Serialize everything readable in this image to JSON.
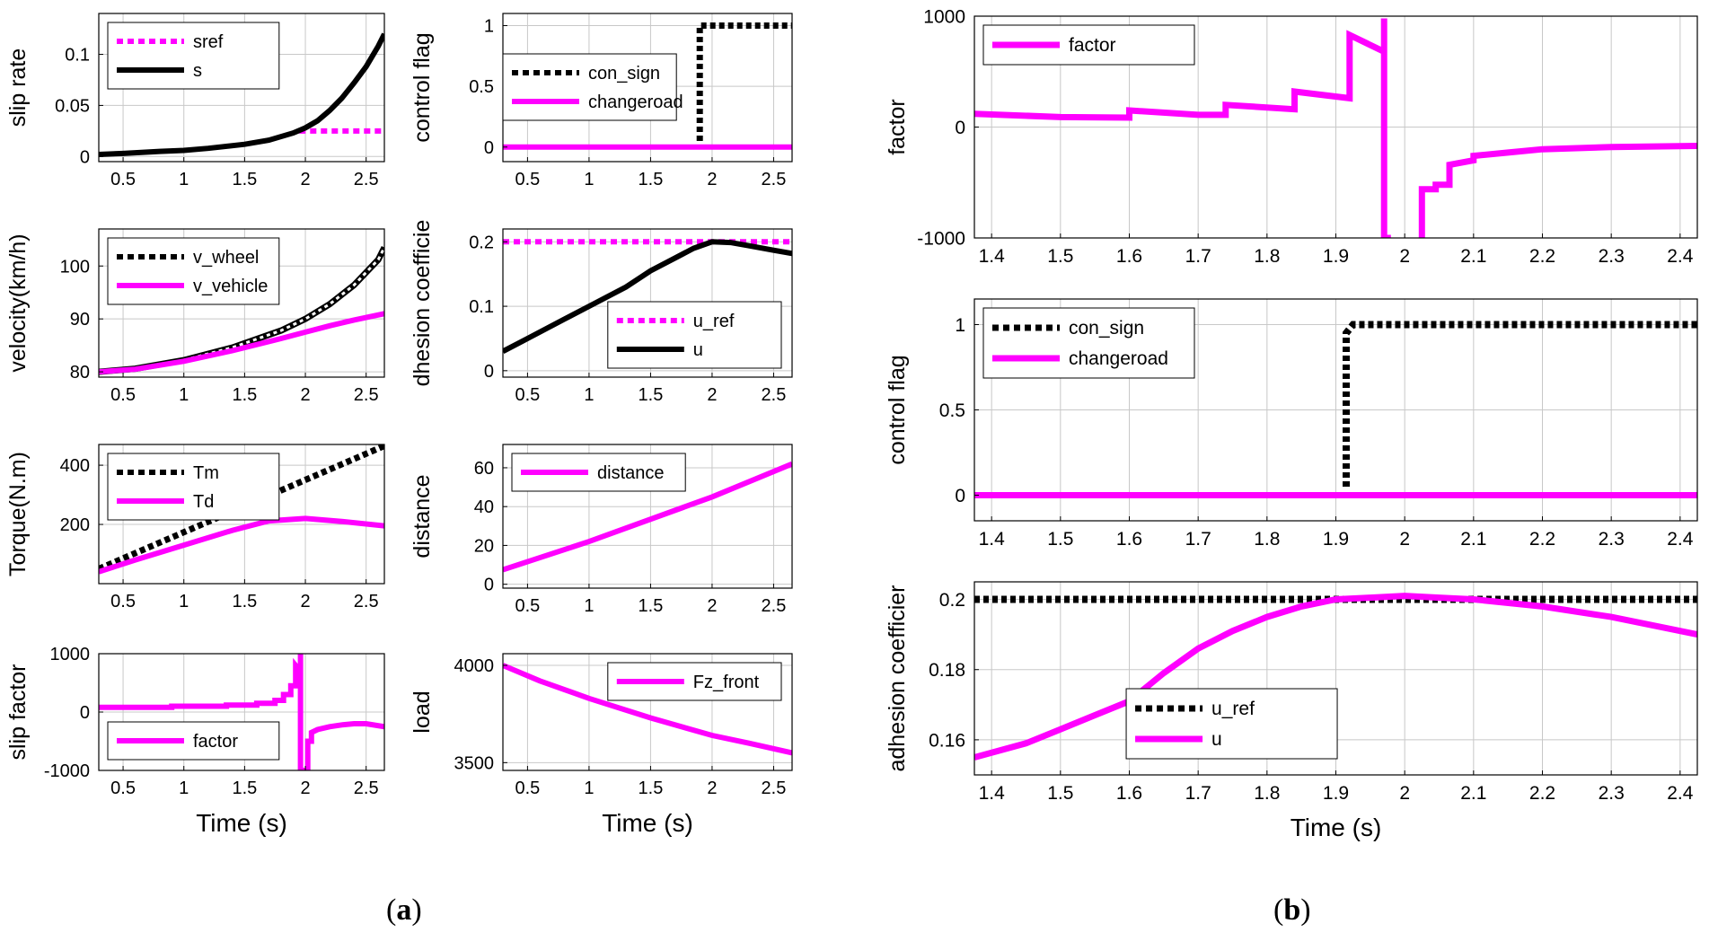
{
  "panels": {
    "a": {
      "open": "(",
      "letter": "a",
      "close": ")"
    },
    "b": {
      "open": "(",
      "letter": "b",
      "close": ")"
    }
  },
  "colors": {
    "magenta": "#ff00ff",
    "black": "#000000",
    "grid": "#c8c8c8"
  },
  "chart_data": [
    {
      "id": "a-slip-rate",
      "type": "line",
      "panel": "a",
      "ylabel": "slip rate",
      "xlabel": "",
      "xlim": [
        0.3,
        2.65
      ],
      "ylim": [
        -0.005,
        0.14
      ],
      "xticks": [
        0.5,
        1,
        1.5,
        2,
        2.5
      ],
      "yticks": [
        0,
        0.05,
        0.1
      ],
      "xtick_labels": [
        "0.5",
        "1",
        "1.5",
        "2",
        "2.5"
      ],
      "ytick_labels": [
        "0",
        "0.05",
        "0.1"
      ],
      "legend": "top-left",
      "series": [
        {
          "name": "sref",
          "color": "#ff00ff",
          "dash": true,
          "x": [
            1.95,
            2.65
          ],
          "y": [
            0.025,
            0.025
          ]
        },
        {
          "name": "s",
          "color": "#000000",
          "dash": false,
          "x": [
            0.3,
            0.5,
            0.8,
            1.0,
            1.2,
            1.5,
            1.7,
            1.9,
            2.0,
            2.1,
            2.2,
            2.3,
            2.4,
            2.5,
            2.6,
            2.65
          ],
          "y": [
            0.002,
            0.003,
            0.005,
            0.006,
            0.008,
            0.012,
            0.016,
            0.023,
            0.028,
            0.035,
            0.045,
            0.057,
            0.072,
            0.088,
            0.108,
            0.12
          ]
        }
      ]
    },
    {
      "id": "a-control-flag",
      "type": "line",
      "panel": "a",
      "ylabel": "control flag",
      "xlabel": "",
      "xlim": [
        0.3,
        2.65
      ],
      "ylim": [
        -0.12,
        1.1
      ],
      "xticks": [
        0.5,
        1,
        1.5,
        2,
        2.5
      ],
      "yticks": [
        0,
        0.5,
        1
      ],
      "xtick_labels": [
        "0.5",
        "1",
        "1.5",
        "2",
        "2.5"
      ],
      "ytick_labels": [
        "0",
        "0.5",
        "1"
      ],
      "legend": "middle-left",
      "series": [
        {
          "name": "con_sign",
          "color": "#000000",
          "dash": true,
          "x": [
            1.9,
            1.9,
            2.65
          ],
          "y": [
            0.05,
            1,
            1
          ]
        },
        {
          "name": "changeroad",
          "color": "#ff00ff",
          "dash": false,
          "x": [
            0.3,
            2.65
          ],
          "y": [
            0,
            0
          ]
        }
      ]
    },
    {
      "id": "a-velocity",
      "type": "line",
      "panel": "a",
      "ylabel": "velocity(km/h)",
      "xlabel": "",
      "xlim": [
        0.3,
        2.65
      ],
      "ylim": [
        79,
        107
      ],
      "xticks": [
        0.5,
        1,
        1.5,
        2,
        2.5
      ],
      "yticks": [
        80,
        90,
        100
      ],
      "xtick_labels": [
        "0.5",
        "1",
        "1.5",
        "2",
        "2.5"
      ],
      "ytick_labels": [
        "80",
        "90",
        "100"
      ],
      "legend": "top-left",
      "series": [
        {
          "name": "v_wheel",
          "color": "#000000",
          "dash": true,
          "x": [
            0.3,
            0.6,
            1.0,
            1.4,
            1.8,
            2.0,
            2.2,
            2.4,
            2.6,
            2.65
          ],
          "y": [
            80.0,
            80.6,
            82.2,
            84.6,
            87.8,
            90.0,
            92.8,
            96.4,
            101.2,
            103.5
          ]
        },
        {
          "name": "v_vehicle",
          "color": "#ff00ff",
          "dash": false,
          "x": [
            0.3,
            0.6,
            1.0,
            1.4,
            1.8,
            2.0,
            2.2,
            2.4,
            2.65
          ],
          "y": [
            80.0,
            80.5,
            82.0,
            84.0,
            86.3,
            87.5,
            88.7,
            89.8,
            91.0
          ]
        }
      ]
    },
    {
      "id": "a-adhesion",
      "type": "line",
      "panel": "a",
      "ylabel": "dhesion coefficie",
      "xlabel": "",
      "xlim": [
        0.3,
        2.65
      ],
      "ylim": [
        -0.01,
        0.22
      ],
      "xticks": [
        0.5,
        1,
        1.5,
        2,
        2.5
      ],
      "yticks": [
        0,
        0.1,
        0.2
      ],
      "xtick_labels": [
        "0.5",
        "1",
        "1.5",
        "2",
        "2.5"
      ],
      "ytick_labels": [
        "0",
        "0.1",
        "0.2"
      ],
      "legend": "bottom-right",
      "series": [
        {
          "name": "u_ref",
          "color": "#ff00ff",
          "dash": true,
          "x": [
            0.3,
            2.65
          ],
          "y": [
            0.2,
            0.2
          ]
        },
        {
          "name": "u",
          "color": "#000000",
          "dash": false,
          "x": [
            0.3,
            0.5,
            0.8,
            1.0,
            1.3,
            1.5,
            1.7,
            1.85,
            2.0,
            2.15,
            2.3,
            2.5,
            2.65
          ],
          "y": [
            0.03,
            0.05,
            0.08,
            0.1,
            0.13,
            0.155,
            0.175,
            0.19,
            0.2,
            0.199,
            0.194,
            0.187,
            0.182
          ]
        }
      ]
    },
    {
      "id": "a-torque",
      "type": "line",
      "panel": "a",
      "ylabel": "Torque(N.m)",
      "xlabel": "",
      "xlim": [
        0.3,
        2.65
      ],
      "ylim": [
        0,
        470
      ],
      "xticks": [
        0.5,
        1,
        1.5,
        2,
        2.5
      ],
      "yticks": [
        200,
        400
      ],
      "xtick_labels": [
        "0.5",
        "1",
        "1.5",
        "2",
        "2.5"
      ],
      "ytick_labels": [
        "200",
        "400"
      ],
      "legend": "top-left",
      "series": [
        {
          "name": "Tm",
          "color": "#000000",
          "dash": true,
          "x": [
            0.3,
            2.65
          ],
          "y": [
            50,
            465
          ]
        },
        {
          "name": "Td",
          "color": "#ff00ff",
          "dash": false,
          "x": [
            0.3,
            0.6,
            1.0,
            1.4,
            1.7,
            2.0,
            2.3,
            2.65
          ],
          "y": [
            40,
            80,
            130,
            180,
            212,
            220,
            210,
            195
          ]
        }
      ]
    },
    {
      "id": "a-distance",
      "type": "line",
      "panel": "a",
      "ylabel": "distance",
      "xlabel": "",
      "xlim": [
        0.3,
        2.65
      ],
      "ylim": [
        -2,
        72
      ],
      "xticks": [
        0.5,
        1,
        1.5,
        2,
        2.5
      ],
      "yticks": [
        0,
        20,
        40,
        60
      ],
      "xtick_labels": [
        "0.5",
        "1",
        "1.5",
        "2",
        "2.5"
      ],
      "ytick_labels": [
        "0",
        "20",
        "40",
        "60"
      ],
      "legend": "top-left",
      "series": [
        {
          "name": "distance",
          "color": "#ff00ff",
          "dash": false,
          "x": [
            0.3,
            1.0,
            2.0,
            2.65
          ],
          "y": [
            7.5,
            22,
            45,
            62
          ]
        }
      ]
    },
    {
      "id": "a-slip-factor",
      "type": "line",
      "panel": "a",
      "ylabel": "slip factor",
      "xlabel": "Time (s)",
      "xlim": [
        0.3,
        2.65
      ],
      "ylim": [
        -1000,
        1000
      ],
      "xticks": [
        0.5,
        1,
        1.5,
        2,
        2.5
      ],
      "yticks": [
        -1000,
        0,
        1000
      ],
      "xtick_labels": [
        "0.5",
        "1",
        "1.5",
        "2",
        "2.5"
      ],
      "ytick_labels": [
        "-1000",
        "0",
        "1000"
      ],
      "legend": "bottom-left",
      "series": [
        {
          "name": "factor",
          "color": "#ff00ff",
          "dash": false,
          "x": [
            0.3,
            0.9,
            0.9,
            1.35,
            1.35,
            1.6,
            1.6,
            1.75,
            1.75,
            1.82,
            1.82,
            1.88,
            1.88,
            1.92,
            1.92,
            1.96,
            1.96,
            1.96,
            1.98,
            1.98,
            2.02,
            2.02,
            2.05,
            2.05,
            2.1,
            2.2,
            2.3,
            2.4,
            2.5,
            2.65
          ],
          "y": [
            80,
            80,
            100,
            100,
            120,
            120,
            150,
            150,
            200,
            200,
            300,
            300,
            450,
            450,
            800,
            700,
            1000,
            -1000,
            -1000,
            -1000,
            -1000,
            -500,
            -500,
            -350,
            -300,
            -250,
            -220,
            -200,
            -200,
            -250
          ]
        }
      ]
    },
    {
      "id": "a-load",
      "type": "line",
      "panel": "a",
      "ylabel": "load",
      "xlabel": "Time (s)",
      "xlim": [
        0.3,
        2.65
      ],
      "ylim": [
        3460,
        4060
      ],
      "xticks": [
        0.5,
        1,
        1.5,
        2,
        2.5
      ],
      "yticks": [
        3500,
        4000
      ],
      "xtick_labels": [
        "0.5",
        "1",
        "1.5",
        "2",
        "2.5"
      ],
      "ytick_labels": [
        "3500",
        "4000"
      ],
      "legend": "top-right",
      "series": [
        {
          "name": "Fz_front",
          "color": "#ff00ff",
          "dash": false,
          "x": [
            0.3,
            0.6,
            1.0,
            1.5,
            2.0,
            2.3,
            2.65
          ],
          "y": [
            4000,
            3920,
            3830,
            3730,
            3640,
            3600,
            3550
          ]
        }
      ]
    },
    {
      "id": "b-factor",
      "type": "line",
      "panel": "b",
      "ylabel": "factor",
      "xlabel": "",
      "xlim": [
        1.375,
        2.425
      ],
      "ylim": [
        -1000,
        1000
      ],
      "xticks": [
        1.4,
        1.5,
        1.6,
        1.7,
        1.8,
        1.9,
        2,
        2.1,
        2.2,
        2.3,
        2.4
      ],
      "xtick_labels": [
        "1.4",
        "1.5",
        "1.6",
        "1.7",
        "1.8",
        "1.9",
        "2",
        "2.1",
        "2.2",
        "2.3",
        "2.4"
      ],
      "yticks": [
        -1000,
        0,
        1000
      ],
      "ytick_labels": [
        "-1000",
        "0",
        "1000"
      ],
      "legend": "top-left",
      "series": [
        {
          "name": "factor",
          "color": "#ff00ff",
          "dash": false,
          "x": [
            1.375,
            1.5,
            1.6,
            1.6,
            1.7,
            1.74,
            1.74,
            1.84,
            1.84,
            1.92,
            1.92,
            1.97,
            1.97,
            1.97,
            1.98
          ],
          "y": [
            120,
            90,
            85,
            150,
            110,
            110,
            200,
            160,
            320,
            260,
            830,
            680,
            980,
            -1000,
            -1000
          ]
        },
        {
          "name": "factor",
          "color": "#ff00ff",
          "dash": false,
          "x": [
            2.025,
            2.025,
            2.045,
            2.045,
            2.065,
            2.065,
            2.1,
            2.1,
            2.15,
            2.2,
            2.3,
            2.425
          ],
          "y": [
            -1000,
            -560,
            -560,
            -520,
            -520,
            -340,
            -300,
            -260,
            -230,
            -200,
            -180,
            -170
          ]
        }
      ]
    },
    {
      "id": "b-control-flag",
      "type": "line",
      "panel": "b",
      "ylabel": "control flag",
      "xlabel": "",
      "xlim": [
        1.375,
        2.425
      ],
      "ylim": [
        -0.15,
        1.15
      ],
      "xticks": [
        1.4,
        1.5,
        1.6,
        1.7,
        1.8,
        1.9,
        2,
        2.1,
        2.2,
        2.3,
        2.4
      ],
      "xtick_labels": [
        "1.4",
        "1.5",
        "1.6",
        "1.7",
        "1.8",
        "1.9",
        "2",
        "2.1",
        "2.2",
        "2.3",
        "2.4"
      ],
      "yticks": [
        0,
        0.5,
        1
      ],
      "ytick_labels": [
        "0",
        "0.5",
        "1"
      ],
      "legend": "top-left",
      "series": [
        {
          "name": "con_sign",
          "color": "#000000",
          "dash": true,
          "x": [
            1.915,
            1.915,
            1.925,
            2.425
          ],
          "y": [
            0.05,
            0.95,
            1,
            1
          ]
        },
        {
          "name": "changeroad",
          "color": "#ff00ff",
          "dash": false,
          "x": [
            1.375,
            2.425
          ],
          "y": [
            0,
            0
          ]
        }
      ]
    },
    {
      "id": "b-adhesion",
      "type": "line",
      "panel": "b",
      "ylabel": "adhesion coefficier",
      "xlabel": "Time (s)",
      "xlim": [
        1.375,
        2.425
      ],
      "ylim": [
        0.15,
        0.205
      ],
      "xticks": [
        1.4,
        1.5,
        1.6,
        1.7,
        1.8,
        1.9,
        2,
        2.1,
        2.2,
        2.3,
        2.4
      ],
      "xtick_labels": [
        "1.4",
        "1.5",
        "1.6",
        "1.7",
        "1.8",
        "1.9",
        "2",
        "2.1",
        "2.2",
        "2.3",
        "2.4"
      ],
      "yticks": [
        0.16,
        0.18,
        0.2
      ],
      "ytick_labels": [
        "0.16",
        "0.18",
        "0.2"
      ],
      "legend": "bottom-center",
      "series": [
        {
          "name": "u_ref",
          "color": "#000000",
          "dash": true,
          "x": [
            1.375,
            2.425
          ],
          "y": [
            0.2,
            0.2
          ]
        },
        {
          "name": "u",
          "color": "#ff00ff",
          "dash": false,
          "x": [
            1.375,
            1.45,
            1.5,
            1.55,
            1.6,
            1.65,
            1.7,
            1.75,
            1.8,
            1.85,
            1.9,
            1.95,
            2.0,
            2.05,
            2.1,
            2.2,
            2.3,
            2.425
          ],
          "y": [
            0.155,
            0.159,
            0.163,
            0.167,
            0.171,
            0.179,
            0.186,
            0.191,
            0.195,
            0.198,
            0.2,
            0.2005,
            0.201,
            0.2005,
            0.2,
            0.198,
            0.195,
            0.19
          ]
        }
      ]
    }
  ]
}
